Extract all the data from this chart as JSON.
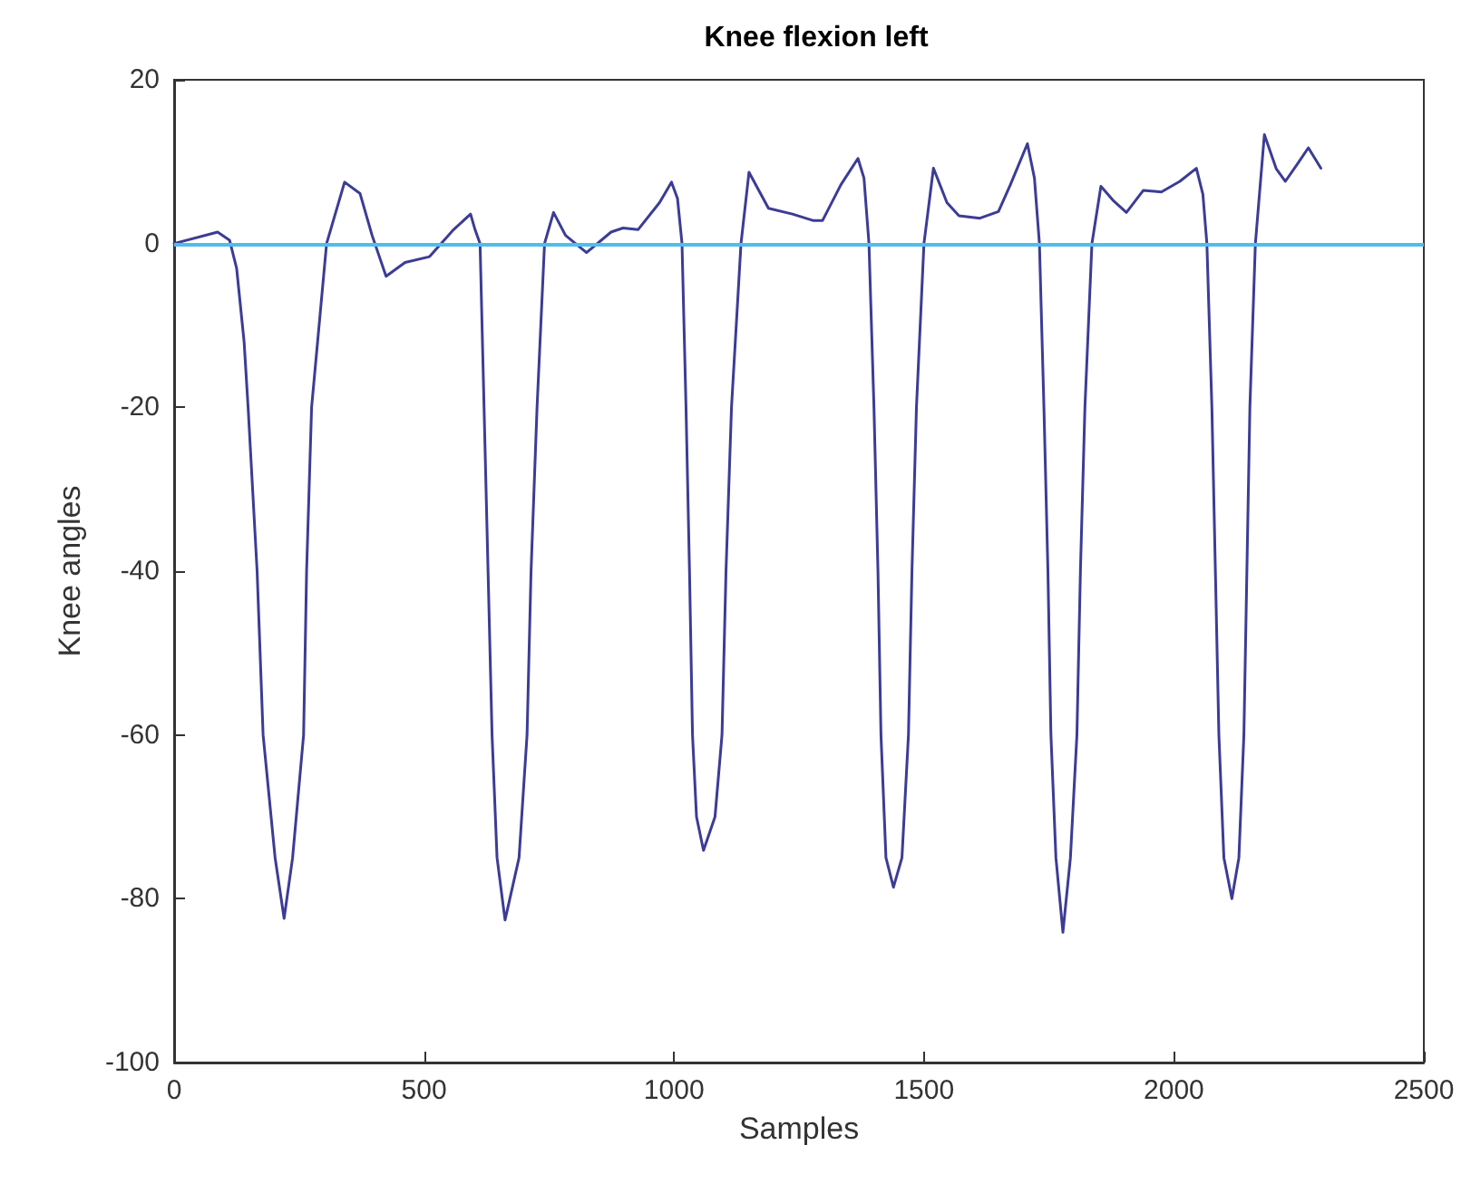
{
  "chart_data": {
    "type": "line",
    "title": "Knee flexion left",
    "xlabel": "Samples",
    "ylabel": "Knee angles",
    "xlim": [
      0,
      2500
    ],
    "xticks": [
      0,
      500,
      1000,
      1500,
      2000,
      2500
    ],
    "ylim": [
      -100,
      20
    ],
    "yticks": [
      -100,
      -80,
      -60,
      -40,
      -20,
      0,
      20
    ],
    "grid": false,
    "marker": "none",
    "line_style": "solid",
    "ref_lines": [
      {
        "axis": "y",
        "value": 0,
        "color": "#4dbeee"
      }
    ],
    "series": [
      {
        "color": "#3c3c96",
        "x": [
          0,
          87,
          111,
          125,
          140,
          148,
          166,
          178,
          202,
          220,
          237,
          259,
          265,
          275,
          305,
          341,
          372,
          396,
          424,
          462,
          511,
          559,
          593,
          602,
          612,
          620,
          628,
          636,
          646,
          662,
          690,
          706,
          714,
          726,
          741,
          759,
          783,
          825,
          874,
          898,
          928,
          971,
          995,
          1007,
          1016,
          1024,
          1031,
          1037,
          1045,
          1059,
          1082,
          1096,
          1104,
          1115,
          1134,
          1150,
          1189,
          1237,
          1279,
          1297,
          1334,
          1368,
          1380,
          1390,
          1400,
          1408,
          1414,
          1424,
          1439,
          1456,
          1469,
          1476,
          1485,
          1500,
          1519,
          1546,
          1570,
          1612,
          1649,
          1673,
          1707,
          1721,
          1731,
          1740,
          1748,
          1754,
          1764,
          1778,
          1793,
          1806,
          1813,
          1822,
          1836,
          1854,
          1878,
          1905,
          1939,
          1975,
          2012,
          2045,
          2058,
          2066,
          2076,
          2083,
          2090,
          2100,
          2116,
          2130,
          2140,
          2146,
          2152,
          2163,
          2181,
          2205,
          2223,
          2248,
          2269,
          2294
        ],
        "values": [
          0,
          1.4,
          0.4,
          -3,
          -12,
          -20,
          -40,
          -60,
          -75,
          -82.4,
          -75,
          -60,
          -40,
          -20,
          0,
          7.5,
          6.1,
          1,
          -4,
          -2.3,
          -1.6,
          1.7,
          3.6,
          1.7,
          0,
          -20,
          -40,
          -60,
          -75,
          -82.6,
          -75,
          -60,
          -40,
          -20,
          0,
          3.8,
          1,
          -1.1,
          1.4,
          1.9,
          1.7,
          5,
          7.5,
          5.5,
          0,
          -20,
          -40,
          -60,
          -70,
          -74.1,
          -70,
          -60,
          -40,
          -20,
          0,
          8.7,
          4.3,
          3.6,
          2.8,
          2.8,
          7.2,
          10.4,
          8,
          0,
          -20,
          -40,
          -60,
          -75,
          -78.6,
          -75,
          -60,
          -40,
          -20,
          0,
          9.2,
          5,
          3.4,
          3.1,
          3.9,
          7.2,
          12.2,
          8,
          0,
          -20,
          -40,
          -60,
          -75,
          -84.1,
          -75,
          -60,
          -40,
          -20,
          0,
          7,
          5.3,
          3.8,
          6.5,
          6.3,
          7.6,
          9.2,
          6,
          0,
          -20,
          -40,
          -60,
          -75,
          -80,
          -75,
          -60,
          -40,
          -20,
          0,
          13.3,
          9.1,
          7.6,
          9.8,
          11.7,
          9.2
        ]
      }
    ]
  }
}
